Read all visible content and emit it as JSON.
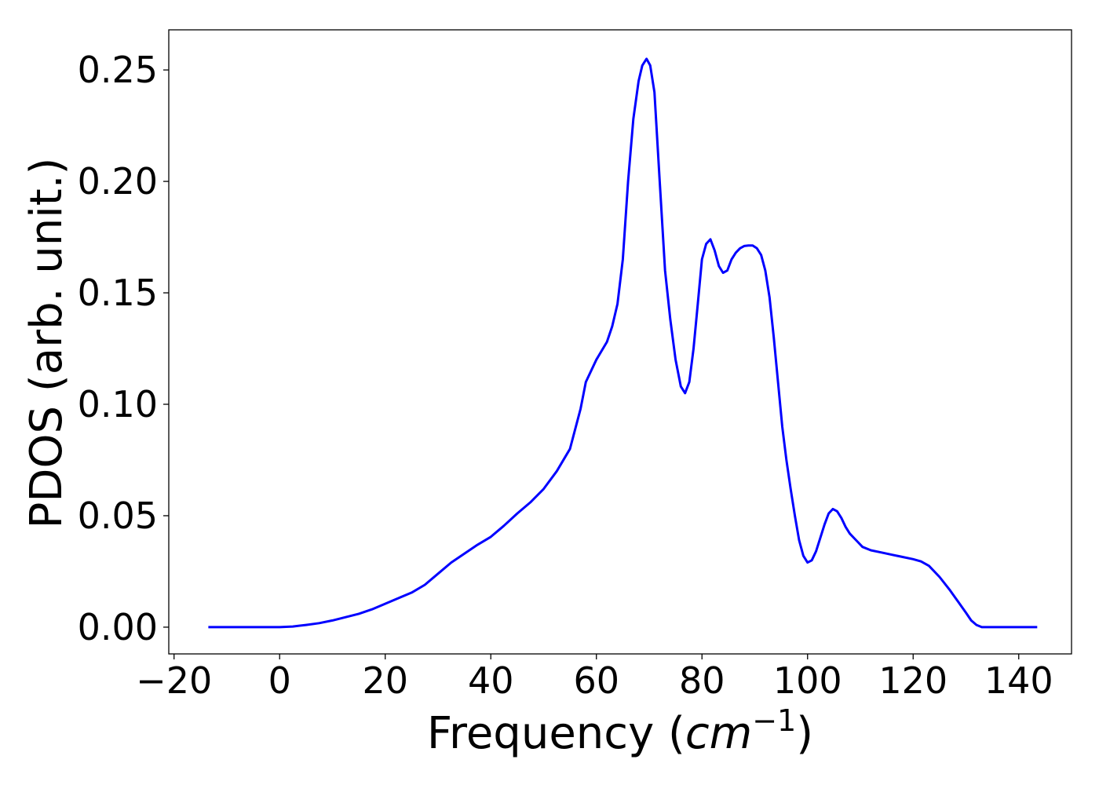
{
  "chart_data": {
    "type": "line",
    "title": "",
    "xlabel": "Frequency (",
    "xlabel_unit_base": "cm",
    "xlabel_unit_exp": "−1",
    "xlabel_close": ")",
    "ylabel": "PDOS (arb. unit.)",
    "xlim": [
      -21,
      150
    ],
    "ylim": [
      -0.012,
      0.268
    ],
    "x_ticks": [
      -20,
      0,
      20,
      40,
      60,
      80,
      100,
      120,
      140
    ],
    "x_tick_labels": [
      "−20",
      "0",
      "20",
      "40",
      "60",
      "80",
      "100",
      "120",
      "140"
    ],
    "y_ticks": [
      0.0,
      0.05,
      0.1,
      0.15,
      0.2,
      0.25
    ],
    "y_tick_labels": [
      "0.00",
      "0.05",
      "0.10",
      "0.15",
      "0.20",
      "0.25"
    ],
    "grid": false,
    "line_color": "#0000ff",
    "series": [
      {
        "x": [
          -13.5,
          0,
          2.5,
          5,
          7.5,
          10,
          12.5,
          15,
          17.5,
          20,
          22.5,
          25,
          27.5,
          30,
          32.5,
          35,
          37.5,
          40,
          42.5,
          45,
          47.5,
          50,
          52.5,
          55,
          57,
          58,
          60,
          62,
          63,
          64,
          65,
          66,
          67,
          68,
          68.7,
          69.5,
          70.2,
          71,
          72,
          73,
          74,
          75,
          76,
          76.8,
          77.6,
          78.4,
          79.2,
          80,
          80.8,
          81.6,
          82.4,
          83.2,
          84,
          84.8,
          85.6,
          86.4,
          87.2,
          88,
          88.8,
          89.6,
          90.4,
          91.2,
          92,
          92.8,
          93.6,
          94.4,
          95.2,
          96,
          96.8,
          97.6,
          98.4,
          99.2,
          100,
          100.8,
          101.6,
          102.4,
          103.2,
          104,
          104.8,
          105.6,
          106.4,
          107.2,
          108,
          108.8,
          109.6,
          110.4,
          112,
          114,
          116,
          118,
          120,
          121.5,
          123,
          125,
          127,
          128.5,
          130,
          131,
          132,
          133,
          135,
          140,
          143.5
        ],
        "y": [
          0.0,
          0.0,
          0.0003,
          0.001,
          0.0018,
          0.003,
          0.0045,
          0.006,
          0.008,
          0.0105,
          0.013,
          0.0155,
          0.019,
          0.024,
          0.029,
          0.033,
          0.037,
          0.0405,
          0.0455,
          0.051,
          0.056,
          0.062,
          0.07,
          0.08,
          0.098,
          0.11,
          0.12,
          0.128,
          0.135,
          0.145,
          0.165,
          0.2,
          0.228,
          0.245,
          0.252,
          0.255,
          0.252,
          0.24,
          0.2,
          0.16,
          0.138,
          0.12,
          0.108,
          0.105,
          0.11,
          0.125,
          0.145,
          0.165,
          0.172,
          0.174,
          0.169,
          0.162,
          0.159,
          0.16,
          0.165,
          0.168,
          0.17,
          0.171,
          0.1712,
          0.1712,
          0.17,
          0.167,
          0.16,
          0.148,
          0.13,
          0.11,
          0.09,
          0.075,
          0.062,
          0.05,
          0.039,
          0.032,
          0.029,
          0.03,
          0.034,
          0.04,
          0.046,
          0.051,
          0.053,
          0.052,
          0.049,
          0.045,
          0.042,
          0.04,
          0.038,
          0.036,
          0.0345,
          0.0335,
          0.0325,
          0.0315,
          0.0305,
          0.0295,
          0.0275,
          0.0225,
          0.0165,
          0.0115,
          0.0065,
          0.003,
          0.001,
          0.0,
          0.0,
          0.0,
          0.0
        ]
      }
    ]
  }
}
